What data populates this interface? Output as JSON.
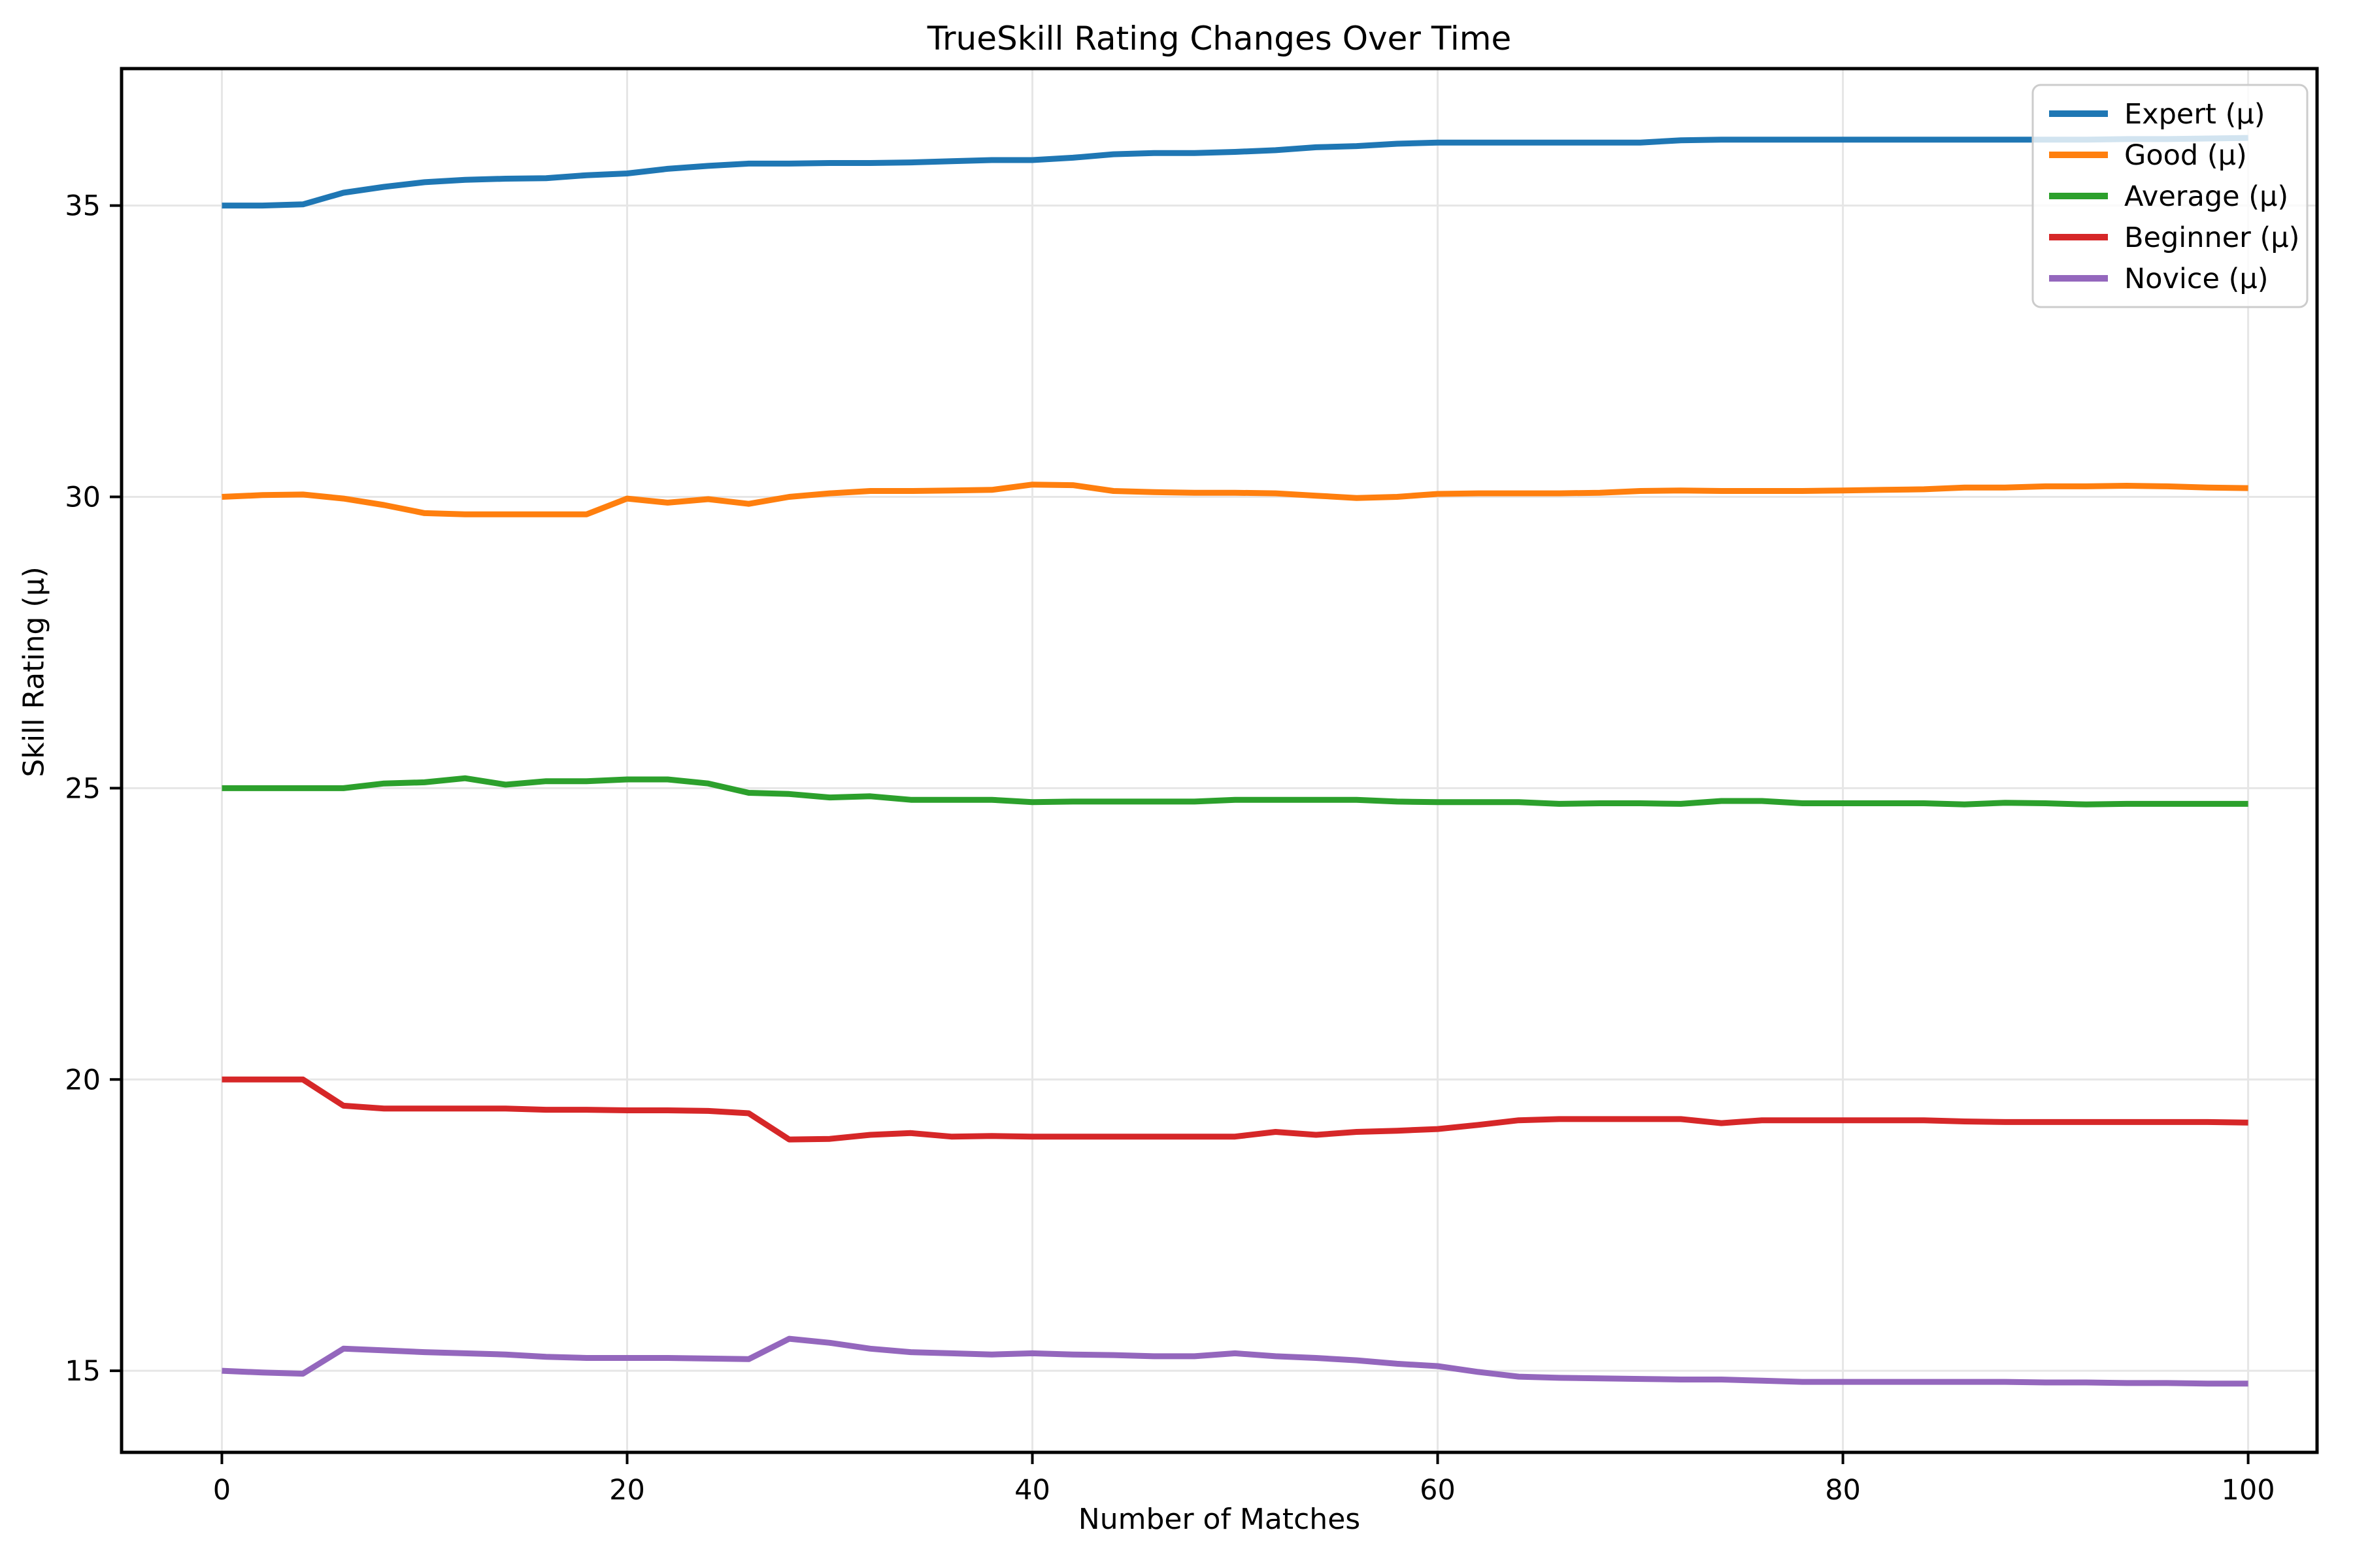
{
  "chart_data": {
    "type": "line",
    "title": "TrueSkill Rating Changes Over Time",
    "xlabel": "Number of Matches",
    "ylabel": "Skill Rating (μ)",
    "grid": true,
    "legend_position": "upper right",
    "xlim": [
      -4.95,
      103.4
    ],
    "ylim": [
      13.6,
      37.35
    ],
    "xticks": [
      0,
      20,
      40,
      60,
      80,
      100
    ],
    "yticks": [
      15,
      20,
      25,
      30,
      35
    ],
    "x": [
      0,
      2,
      4,
      6,
      8,
      10,
      12,
      14,
      16,
      18,
      20,
      22,
      24,
      26,
      28,
      30,
      32,
      34,
      36,
      38,
      40,
      42,
      44,
      46,
      48,
      50,
      52,
      54,
      56,
      58,
      60,
      62,
      64,
      66,
      68,
      70,
      72,
      74,
      76,
      78,
      80,
      82,
      84,
      86,
      88,
      90,
      92,
      94,
      96,
      98,
      100
    ],
    "series": [
      {
        "name": "Expert (μ)",
        "color": "#1f77b4",
        "values": [
          35.0,
          35.0,
          35.02,
          35.22,
          35.32,
          35.4,
          35.44,
          35.46,
          35.47,
          35.52,
          35.55,
          35.63,
          35.68,
          35.72,
          35.72,
          35.73,
          35.73,
          35.74,
          35.76,
          35.78,
          35.78,
          35.82,
          35.88,
          35.9,
          35.9,
          35.92,
          35.95,
          36.0,
          36.02,
          36.06,
          36.08,
          36.08,
          36.08,
          36.08,
          36.08,
          36.08,
          36.12,
          36.13,
          36.13,
          36.13,
          36.13,
          36.13,
          36.13,
          36.13,
          36.13,
          36.13,
          36.13,
          36.14,
          36.14,
          36.15,
          36.16
        ]
      },
      {
        "name": "Good (μ)",
        "color": "#ff7f0e",
        "values": [
          30.0,
          30.03,
          30.04,
          29.97,
          29.86,
          29.72,
          29.7,
          29.7,
          29.7,
          29.7,
          29.97,
          29.9,
          29.96,
          29.88,
          30.0,
          30.06,
          30.1,
          30.1,
          30.11,
          30.12,
          30.21,
          30.2,
          30.1,
          30.08,
          30.07,
          30.07,
          30.06,
          30.02,
          29.98,
          30.0,
          30.05,
          30.06,
          30.06,
          30.06,
          30.07,
          30.1,
          30.11,
          30.1,
          30.1,
          30.1,
          30.11,
          30.12,
          30.13,
          30.16,
          30.16,
          30.18,
          30.18,
          30.19,
          30.18,
          30.16,
          30.15
        ]
      },
      {
        "name": "Average (μ)",
        "color": "#2ca02c",
        "values": [
          25.0,
          25.0,
          25.0,
          25.0,
          25.08,
          25.1,
          25.17,
          25.06,
          25.12,
          25.12,
          25.15,
          25.15,
          25.08,
          24.92,
          24.9,
          24.84,
          24.86,
          24.8,
          24.8,
          24.8,
          24.76,
          24.77,
          24.77,
          24.77,
          24.77,
          24.8,
          24.8,
          24.8,
          24.8,
          24.77,
          24.76,
          24.76,
          24.76,
          24.73,
          24.74,
          24.74,
          24.73,
          24.78,
          24.78,
          24.74,
          24.74,
          24.74,
          24.74,
          24.72,
          24.75,
          24.74,
          24.72,
          24.73,
          24.73,
          24.73,
          24.73
        ]
      },
      {
        "name": "Beginner (μ)",
        "color": "#d62728",
        "values": [
          20.0,
          20.0,
          20.0,
          19.55,
          19.5,
          19.5,
          19.5,
          19.5,
          19.48,
          19.48,
          19.47,
          19.47,
          19.46,
          19.42,
          18.97,
          18.98,
          19.05,
          19.08,
          19.02,
          19.03,
          19.02,
          19.02,
          19.02,
          19.02,
          19.02,
          19.02,
          19.1,
          19.05,
          19.1,
          19.12,
          19.15,
          19.22,
          19.3,
          19.32,
          19.32,
          19.32,
          19.32,
          19.25,
          19.3,
          19.3,
          19.3,
          19.3,
          19.3,
          19.28,
          19.27,
          19.27,
          19.27,
          19.27,
          19.27,
          19.27,
          19.26
        ]
      },
      {
        "name": "Novice (μ)",
        "color": "#9467bd",
        "values": [
          15.0,
          14.97,
          14.95,
          15.38,
          15.35,
          15.32,
          15.3,
          15.28,
          15.24,
          15.22,
          15.22,
          15.22,
          15.21,
          15.2,
          15.55,
          15.48,
          15.38,
          15.32,
          15.3,
          15.28,
          15.3,
          15.28,
          15.27,
          15.25,
          15.25,
          15.3,
          15.25,
          15.22,
          15.18,
          15.12,
          15.08,
          14.98,
          14.9,
          14.88,
          14.87,
          14.86,
          14.85,
          14.85,
          14.83,
          14.81,
          14.81,
          14.81,
          14.81,
          14.81,
          14.81,
          14.8,
          14.8,
          14.79,
          14.79,
          14.78,
          14.78
        ]
      }
    ]
  },
  "style": {
    "grid_color": "#e6e6e6",
    "spine_color": "#000000",
    "background": "#ffffff",
    "legend_border_color": "#cccccc"
  }
}
